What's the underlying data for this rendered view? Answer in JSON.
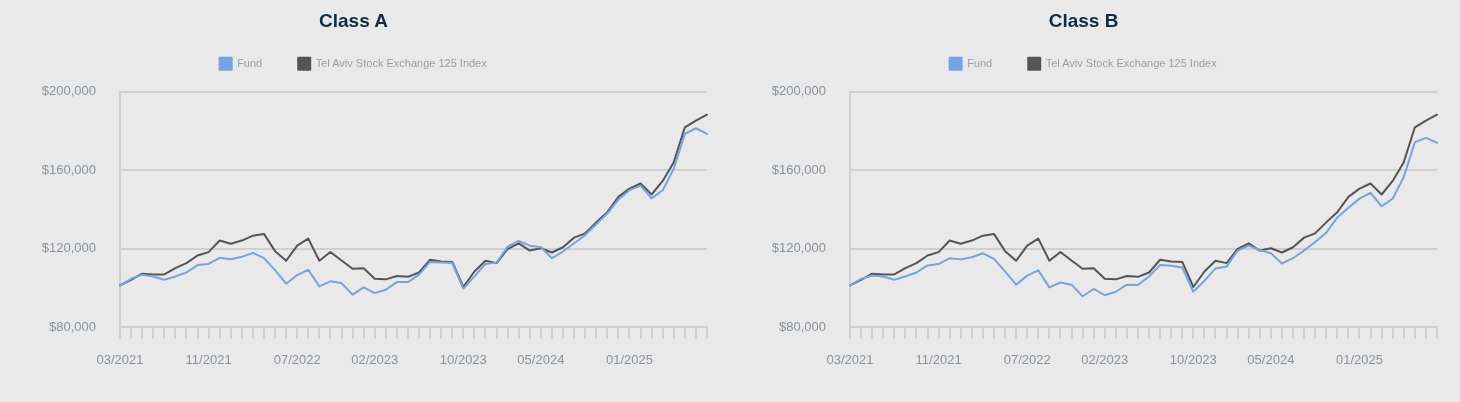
{
  "chart_data": [
    {
      "type": "line",
      "title": "Class A",
      "legend": "top",
      "grid": "y",
      "marker": "none",
      "line_style": "solid",
      "categories": [
        "03/2021",
        null,
        null,
        null,
        null,
        null,
        null,
        null,
        "11/2021",
        null,
        null,
        null,
        null,
        null,
        null,
        null,
        "07/2022",
        null,
        null,
        null,
        null,
        null,
        null,
        "02/2023",
        null,
        null,
        null,
        null,
        null,
        null,
        null,
        "10/2023",
        null,
        null,
        null,
        null,
        null,
        null,
        "05/2024",
        null,
        null,
        null,
        null,
        null,
        null,
        null,
        "01/2025",
        null,
        null,
        null,
        null,
        null,
        null,
        null
      ],
      "ylim": [
        80000,
        200000
      ],
      "yticks": [
        {
          "value": 80000,
          "label": "$80,000"
        },
        {
          "value": 120000,
          "label": "$120,000"
        },
        {
          "value": 160000,
          "label": "$160,000"
        },
        {
          "value": 200000,
          "label": "$200,000"
        }
      ],
      "series": [
        {
          "name": "Fund",
          "color": "#75a3e3",
          "values": [
            101200,
            104600,
            106700,
            105800,
            104100,
            105800,
            107800,
            111600,
            112200,
            115300,
            114600,
            115800,
            117800,
            115100,
            109000,
            102100,
            106500,
            109200,
            100700,
            103300,
            102400,
            96500,
            100200,
            97300,
            99000,
            102900,
            102900,
            106700,
            113200,
            112900,
            112600,
            99600,
            105800,
            112200,
            112900,
            121000,
            123900,
            121500,
            120700,
            115100,
            118500,
            122700,
            126900,
            132400,
            137900,
            145000,
            149800,
            152100,
            145600,
            149800,
            160800,
            178500,
            181400,
            178500
          ]
        },
        {
          "name": "Tel Aviv Stock Exchange 125 Index",
          "color": "#555555",
          "values": [
            101200,
            104100,
            107200,
            106800,
            106800,
            110000,
            112600,
            116500,
            118200,
            124100,
            122500,
            124100,
            126600,
            127500,
            118700,
            113800,
            121500,
            125100,
            113800,
            118300,
            113900,
            109700,
            110000,
            104600,
            104300,
            106000,
            105600,
            107800,
            114300,
            113400,
            113200,
            100400,
            108300,
            113800,
            112600,
            119800,
            122700,
            119000,
            120200,
            118000,
            120700,
            125600,
            127800,
            133400,
            138600,
            146400,
            150600,
            153200,
            147600,
            154500,
            164100,
            181900,
            185300,
            188300
          ]
        }
      ]
    },
    {
      "type": "line",
      "title": "Class B",
      "legend": "top",
      "grid": "y",
      "marker": "none",
      "line_style": "solid",
      "categories": [
        "03/2021",
        null,
        null,
        null,
        null,
        null,
        null,
        null,
        "11/2021",
        null,
        null,
        null,
        null,
        null,
        null,
        null,
        "07/2022",
        null,
        null,
        null,
        null,
        null,
        null,
        "02/2023",
        null,
        null,
        null,
        null,
        null,
        null,
        null,
        "10/2023",
        null,
        null,
        null,
        null,
        null,
        null,
        "05/2024",
        null,
        null,
        null,
        null,
        null,
        null,
        null,
        "01/2025",
        null,
        null,
        null,
        null,
        null,
        null,
        null
      ],
      "ylim": [
        80000,
        200000
      ],
      "yticks": [
        {
          "value": 80000,
          "label": "$80,000"
        },
        {
          "value": 120000,
          "label": "$120,000"
        },
        {
          "value": 160000,
          "label": "$160,000"
        },
        {
          "value": 200000,
          "label": "$200,000"
        }
      ],
      "series": [
        {
          "name": "Fund",
          "color": "#75a3e3",
          "values": [
            101200,
            104500,
            106300,
            105800,
            104100,
            105800,
            107800,
            111400,
            112100,
            115100,
            114500,
            115600,
            117600,
            114800,
            108400,
            101600,
            106200,
            108900,
            100200,
            102700,
            101600,
            95700,
            99400,
            96200,
            98000,
            101600,
            101400,
            105800,
            111600,
            111200,
            110400,
            98000,
            103600,
            109900,
            110900,
            119000,
            121500,
            119300,
            117600,
            112400,
            115100,
            119000,
            123400,
            128100,
            135900,
            140800,
            145500,
            148400,
            141600,
            145500,
            156500,
            174300,
            176500,
            174000
          ]
        },
        {
          "name": "Tel Aviv Stock Exchange 125 Index",
          "color": "#555555",
          "values": [
            101200,
            104100,
            107200,
            106800,
            106800,
            110000,
            112600,
            116500,
            118200,
            124100,
            122500,
            124100,
            126600,
            127500,
            118700,
            113800,
            121500,
            125100,
            113800,
            118300,
            113900,
            109700,
            110000,
            104600,
            104300,
            106000,
            105600,
            107800,
            114300,
            113400,
            113200,
            100400,
            108300,
            113800,
            112600,
            119800,
            122700,
            119000,
            120200,
            118000,
            120700,
            125600,
            127800,
            133400,
            138600,
            146400,
            150600,
            153200,
            147600,
            154500,
            164100,
            181900,
            185300,
            188300
          ]
        }
      ]
    }
  ]
}
